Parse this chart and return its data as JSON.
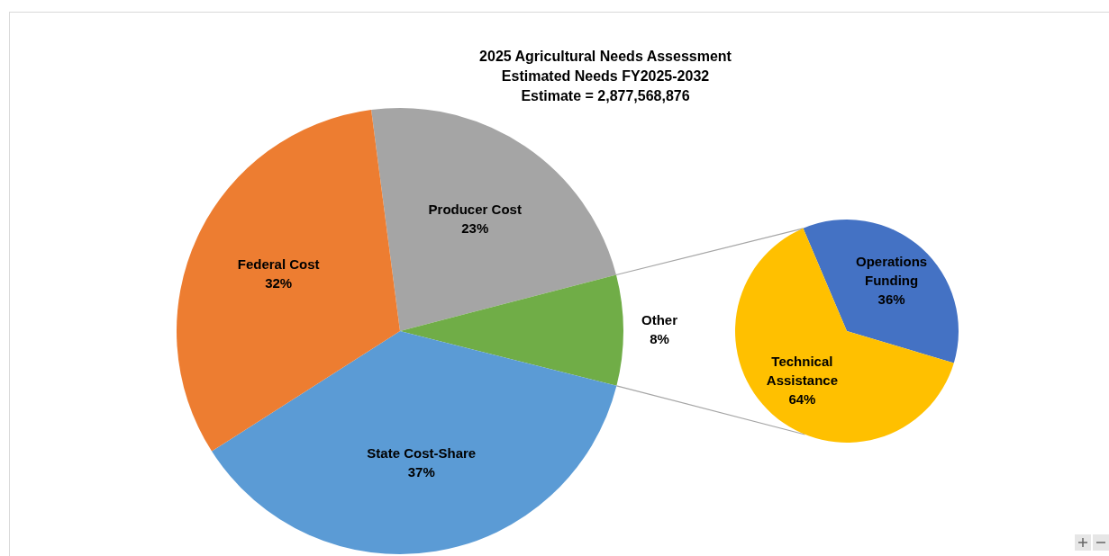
{
  "chart_data": [
    {
      "type": "pie",
      "title": "2025 Agricultural Needs Assessment\nEstimated Needs FY2025-2032\nEstimate = 2,877,568,876",
      "categories": [
        "Producer Cost",
        "Other",
        "State Cost-Share",
        "Federal Cost"
      ],
      "values": [
        23,
        8,
        37,
        32
      ],
      "colors": [
        "#a5a5a5",
        "#70ad47",
        "#5b9bd5",
        "#ed7d31"
      ],
      "value_labels": [
        "23%",
        "8%",
        "37%",
        "32%"
      ]
    },
    {
      "type": "pie",
      "categories": [
        "Operations Funding",
        "Technical Assistance"
      ],
      "values": [
        36,
        64
      ],
      "colors": [
        "#4472c4",
        "#ffc000"
      ],
      "value_labels": [
        "36%",
        "64%"
      ]
    }
  ]
}
